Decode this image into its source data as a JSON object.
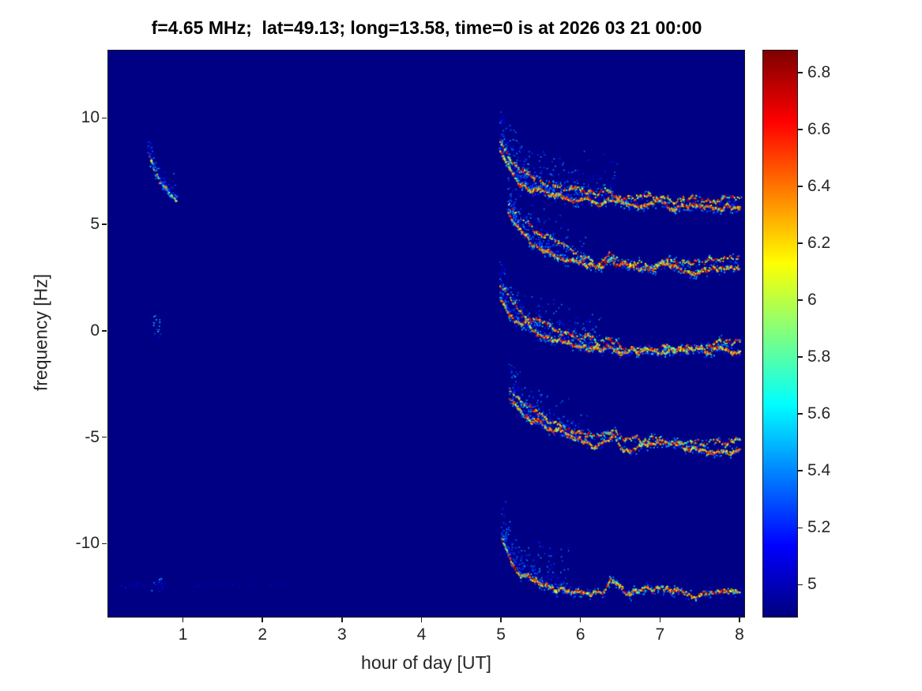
{
  "chart_data": {
    "type": "heatmap",
    "title": "f=4.65 MHz;  lat=49.13; long=13.58, time=0 is at 2026 03 21 00:00",
    "xlabel": "hour of day [UT]",
    "ylabel": "frequency [Hz]",
    "xlim": [
      0.05,
      8.05
    ],
    "ylim": [
      -13.4,
      13.2
    ],
    "x_ticks": [
      1,
      2,
      3,
      4,
      5,
      6,
      7,
      8
    ],
    "y_ticks": [
      -10,
      -5,
      0,
      5,
      10
    ],
    "grid": false,
    "background_value": 4.9,
    "colorbar": {
      "colormap": "jet",
      "min": 4.89,
      "max": 6.88,
      "ticks": [
        5,
        5.2,
        5.4,
        5.6,
        5.8,
        6,
        6.2,
        6.4,
        6.6,
        6.8
      ],
      "position": "right"
    },
    "traces": [
      {
        "name": "pre-sunrise-trace",
        "anchors": [
          [
            0.55,
            8.3
          ],
          [
            0.6,
            7.9
          ],
          [
            0.65,
            7.3
          ],
          [
            0.7,
            7.0
          ],
          [
            0.74,
            6.8
          ],
          [
            0.8,
            6.55
          ],
          [
            0.86,
            6.35
          ],
          [
            0.92,
            6.2
          ]
        ],
        "density": 0.85,
        "vmin": 5.3,
        "vmax": 6.7,
        "double": false,
        "speckle": true,
        "speckle_n": 90,
        "speckle_span": 0.35,
        "speckle_up": 1.2
      },
      {
        "name": "doppler-band-plus6",
        "anchors": [
          [
            4.98,
            8.5
          ],
          [
            5.1,
            7.6
          ],
          [
            5.25,
            7.0
          ],
          [
            5.45,
            6.6
          ],
          [
            5.7,
            6.35
          ],
          [
            6.0,
            6.2
          ],
          [
            6.2,
            6.05
          ],
          [
            6.35,
            6.3
          ],
          [
            6.5,
            6.0
          ],
          [
            6.8,
            5.95
          ],
          [
            7.0,
            6.1
          ],
          [
            7.2,
            5.9
          ],
          [
            7.5,
            6.0
          ],
          [
            7.8,
            5.85
          ],
          [
            8.0,
            5.9
          ]
        ],
        "density": 1,
        "vmin": 5.6,
        "vmax": 6.9,
        "double": true,
        "speckle": true,
        "speckle_n": 520,
        "speckle_span": 1.45,
        "speckle_up": 2.4
      },
      {
        "name": "doppler-band-plus3",
        "anchors": [
          [
            5.08,
            5.6
          ],
          [
            5.2,
            4.9
          ],
          [
            5.35,
            4.3
          ],
          [
            5.55,
            3.8
          ],
          [
            5.8,
            3.4
          ],
          [
            6.0,
            3.2
          ],
          [
            6.2,
            3.0
          ],
          [
            6.35,
            3.4
          ],
          [
            6.5,
            3.0
          ],
          [
            6.8,
            2.95
          ],
          [
            7.1,
            3.1
          ],
          [
            7.4,
            2.9
          ],
          [
            7.7,
            3.0
          ],
          [
            8.0,
            2.9
          ]
        ],
        "density": 0.95,
        "vmin": 5.6,
        "vmax": 6.9,
        "double": true,
        "speckle": true,
        "speckle_n": 380,
        "speckle_span": 1.0,
        "speckle_up": 2.0
      },
      {
        "name": "doppler-band-minus1",
        "anchors": [
          [
            4.98,
            1.6
          ],
          [
            5.1,
            0.9
          ],
          [
            5.25,
            0.3
          ],
          [
            5.45,
            -0.2
          ],
          [
            5.7,
            -0.5
          ],
          [
            5.95,
            -0.75
          ],
          [
            6.2,
            -0.9
          ],
          [
            6.35,
            -0.5
          ],
          [
            6.5,
            -0.95
          ],
          [
            6.8,
            -1.0
          ],
          [
            7.1,
            -0.85
          ],
          [
            7.4,
            -1.05
          ],
          [
            7.7,
            -0.95
          ],
          [
            8.0,
            -1.0
          ]
        ],
        "density": 1,
        "vmin": 5.6,
        "vmax": 6.9,
        "double": true,
        "speckle": true,
        "speckle_n": 420,
        "speckle_span": 1.25,
        "speckle_up": 2.2
      },
      {
        "name": "doppler-band-minus5",
        "anchors": [
          [
            5.1,
            -3.2
          ],
          [
            5.25,
            -3.9
          ],
          [
            5.45,
            -4.4
          ],
          [
            5.7,
            -4.8
          ],
          [
            5.95,
            -5.1
          ],
          [
            6.2,
            -5.4
          ],
          [
            6.4,
            -5.0
          ],
          [
            6.55,
            -5.5
          ],
          [
            6.8,
            -5.3
          ],
          [
            7.0,
            -5.2
          ],
          [
            7.2,
            -5.6
          ],
          [
            7.5,
            -5.5
          ],
          [
            7.8,
            -5.6
          ],
          [
            8.0,
            -5.55
          ]
        ],
        "density": 0.95,
        "vmin": 5.55,
        "vmax": 6.9,
        "double": true,
        "speckle": true,
        "speckle_n": 360,
        "speckle_span": 1.0,
        "speckle_up": 2.0
      },
      {
        "name": "doppler-band-minus12",
        "anchors": [
          [
            5.0,
            -9.7
          ],
          [
            5.08,
            -10.6
          ],
          [
            5.18,
            -11.2
          ],
          [
            5.3,
            -11.6
          ],
          [
            5.5,
            -11.9
          ],
          [
            5.75,
            -12.1
          ],
          [
            6.0,
            -12.3
          ],
          [
            6.25,
            -12.2
          ],
          [
            6.4,
            -11.9
          ],
          [
            6.55,
            -12.3
          ],
          [
            6.8,
            -12.25
          ],
          [
            7.1,
            -12.1
          ],
          [
            7.4,
            -12.35
          ],
          [
            7.7,
            -12.2
          ],
          [
            8.0,
            -12.3
          ]
        ],
        "density": 0.9,
        "vmin": 5.5,
        "vmax": 6.9,
        "double": false,
        "speckle": true,
        "speckle_n": 300,
        "speckle_span": 0.85,
        "speckle_up": 2.2
      }
    ],
    "dots": [
      {
        "x": 0.66,
        "y": 0.3,
        "sx": 0.05,
        "sy": 0.55,
        "n": 18,
        "vmax": 5.9
      },
      {
        "x": 0.64,
        "y": -11.85,
        "sx": 0.08,
        "sy": 0.35,
        "n": 14,
        "vmax": 5.6
      },
      {
        "x": 0.45,
        "y": -11.9,
        "sx": 0.35,
        "sy": 0.1,
        "n": 22,
        "vmax": 5.25
      },
      {
        "x": 1.35,
        "y": -11.9,
        "sx": 0.35,
        "sy": 0.08,
        "n": 12,
        "vmax": 5.2
      },
      {
        "x": 2.1,
        "y": -11.9,
        "sx": 0.3,
        "sy": 0.08,
        "n": 8,
        "vmax": 5.15
      }
    ]
  },
  "colors": {
    "figure_background": "#ffffff",
    "axes_text": "#262626",
    "title_text": "#000000",
    "heatmap_low": "#000080",
    "heatmap_high": "#800000"
  }
}
